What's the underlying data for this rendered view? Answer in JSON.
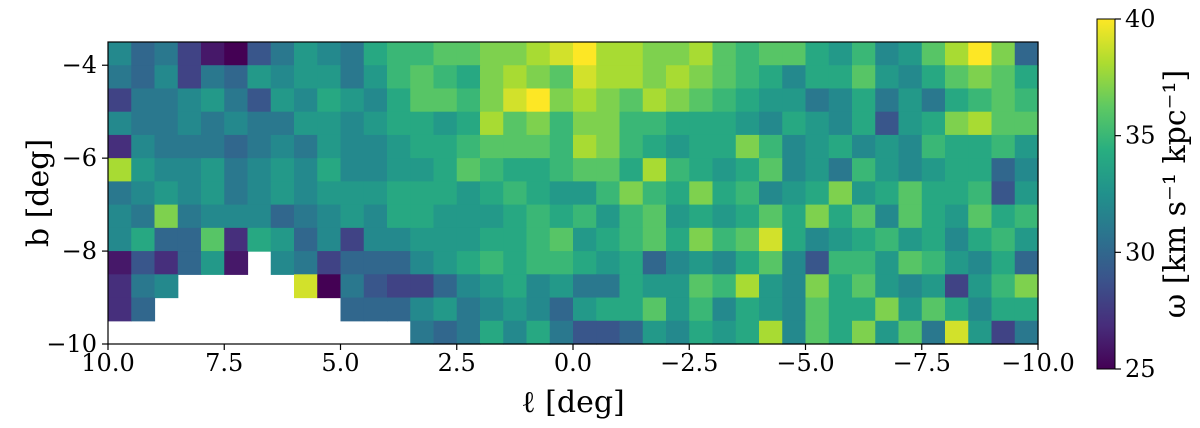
{
  "chart_data": {
    "type": "heatmap",
    "title": "",
    "xlabel": "ℓ [deg]",
    "ylabel": "b [deg]",
    "colorbar_label": "ω [km s⁻¹ kpc⁻¹]",
    "xlim": [
      10.0,
      -10.0
    ],
    "ylim": [
      -10,
      -3.5
    ],
    "x_ticks": [
      10.0,
      7.5,
      5.0,
      2.5,
      0.0,
      -2.5,
      -5.0,
      -7.5,
      -10.0
    ],
    "x_tick_labels": [
      "10.0",
      "7.5",
      "5.0",
      "2.5",
      "0.0",
      "−2.5",
      "−5.0",
      "−7.5",
      "−10.0"
    ],
    "y_ticks": [
      -4,
      -6,
      -8,
      -10
    ],
    "y_tick_labels": [
      "−4",
      "−6",
      "−8",
      "−10"
    ],
    "colorbar_range": [
      25,
      40
    ],
    "colorbar_ticks": [
      25,
      30,
      35,
      40
    ],
    "colorbar_tick_labels": [
      "25",
      "30",
      "35",
      "40"
    ],
    "colormap": "viridis",
    "cell_size_deg": 0.5,
    "row_b_centers": [
      -3.75,
      -4.25,
      -4.75,
      -5.25,
      -5.75,
      -6.25,
      -6.75,
      -7.25,
      -7.75,
      -8.25,
      -8.75,
      -9.25,
      -9.75
    ],
    "col_l_centers": [
      9.75,
      9.25,
      8.75,
      8.25,
      7.75,
      7.25,
      6.75,
      6.25,
      5.75,
      5.25,
      4.75,
      4.25,
      3.75,
      3.25,
      2.75,
      2.25,
      1.75,
      1.25,
      0.75,
      0.25,
      -0.25,
      -0.75,
      -1.25,
      -1.75,
      -2.25,
      -2.75,
      -3.25,
      -3.75,
      -4.25,
      -4.75,
      -5.25,
      -5.75,
      -6.25,
      -6.75,
      -7.25,
      -7.75,
      -8.25,
      -8.75,
      -9.25,
      -9.75
    ],
    "values": [
      [
        32,
        30,
        31,
        28,
        26,
        25,
        29,
        31,
        33,
        32,
        31,
        34,
        35,
        35,
        36,
        36,
        37,
        37,
        38,
        39,
        40,
        38,
        38,
        37,
        37,
        38,
        36,
        35,
        36,
        36,
        34,
        33,
        35,
        32,
        33,
        36,
        38,
        40,
        37,
        30
      ],
      [
        31,
        30,
        32,
        28,
        31,
        30,
        33,
        32,
        33,
        33,
        31,
        33,
        35,
        36,
        35,
        34,
        37,
        38,
        37,
        36,
        39,
        38,
        38,
        37,
        38,
        37,
        36,
        35,
        34,
        32,
        34,
        34,
        36,
        33,
        32,
        34,
        36,
        37,
        36,
        34
      ],
      [
        28,
        31,
        31,
        32,
        33,
        31,
        29,
        33,
        32,
        34,
        33,
        32,
        34,
        36,
        36,
        35,
        37,
        39,
        40,
        37,
        38,
        37,
        36,
        38,
        37,
        36,
        35,
        34,
        33,
        33,
        31,
        32,
        34,
        31,
        33,
        31,
        34,
        35,
        36,
        35
      ],
      [
        32,
        31,
        31,
        32,
        31,
        32,
        31,
        31,
        33,
        33,
        32,
        33,
        34,
        34,
        33,
        34,
        38,
        36,
        37,
        35,
        37,
        37,
        35,
        35,
        34,
        34,
        34,
        33,
        32,
        34,
        33,
        32,
        34,
        29,
        33,
        34,
        37,
        38,
        36,
        36
      ],
      [
        27,
        32,
        31,
        31,
        31,
        30,
        31,
        32,
        31,
        33,
        32,
        32,
        33,
        34,
        34,
        35,
        36,
        36,
        36,
        35,
        38,
        37,
        35,
        34,
        33,
        34,
        34,
        37,
        35,
        32,
        33,
        34,
        32,
        33,
        32,
        35,
        34,
        34,
        35,
        33
      ],
      [
        38,
        33,
        32,
        32,
        33,
        31,
        32,
        33,
        32,
        34,
        32,
        32,
        33,
        33,
        34,
        36,
        35,
        34,
        34,
        35,
        36,
        36,
        34,
        38,
        35,
        34,
        33,
        34,
        36,
        32,
        33,
        31,
        35,
        33,
        32,
        33,
        34,
        34,
        30,
        32
      ],
      [
        31,
        32,
        33,
        32,
        33,
        31,
        32,
        33,
        32,
        33,
        33,
        33,
        34,
        34,
        34,
        33,
        34,
        35,
        34,
        33,
        33,
        35,
        37,
        35,
        34,
        37,
        34,
        35,
        32,
        33,
        34,
        37,
        33,
        34,
        36,
        34,
        34,
        35,
        29,
        33
      ],
      [
        32,
        31,
        37,
        31,
        32,
        32,
        32,
        30,
        31,
        32,
        33,
        32,
        34,
        34,
        33,
        33,
        33,
        34,
        35,
        34,
        35,
        33,
        35,
        36,
        33,
        34,
        33,
        34,
        36,
        34,
        37,
        34,
        36,
        32,
        36,
        34,
        33,
        36,
        34,
        35
      ],
      [
        32,
        34,
        30,
        30,
        36,
        27,
        34,
        33,
        30,
        32,
        28,
        32,
        32,
        33,
        33,
        33,
        34,
        34,
        35,
        36,
        33,
        34,
        35,
        36,
        34,
        37,
        35,
        36,
        39,
        34,
        32,
        33,
        34,
        35,
        33,
        34,
        32,
        34,
        35,
        33
      ],
      [
        26,
        29,
        27,
        30,
        33,
        26,
        null,
        32,
        31,
        28,
        30,
        30,
        30,
        32,
        33,
        34,
        35,
        34,
        35,
        35,
        34,
        33,
        34,
        30,
        32,
        33,
        32,
        34,
        36,
        32,
        29,
        35,
        35,
        33,
        36,
        35,
        33,
        32,
        34,
        30
      ],
      [
        27,
        31,
        32,
        null,
        null,
        null,
        null,
        null,
        39,
        25,
        31,
        29,
        28,
        28,
        30,
        32,
        33,
        34,
        32,
        33,
        31,
        31,
        34,
        33,
        33,
        36,
        35,
        38,
        33,
        32,
        37,
        34,
        36,
        33,
        32,
        33,
        28,
        33,
        35,
        37
      ],
      [
        27,
        30,
        null,
        null,
        null,
        null,
        null,
        null,
        null,
        null,
        30,
        30,
        30,
        32,
        33,
        31,
        32,
        33,
        32,
        30,
        33,
        34,
        34,
        36,
        33,
        35,
        32,
        34,
        33,
        32,
        36,
        34,
        34,
        37,
        33,
        36,
        34,
        32,
        34,
        34
      ],
      [
        null,
        null,
        null,
        null,
        null,
        null,
        null,
        null,
        null,
        null,
        null,
        null,
        null,
        31,
        30,
        31,
        34,
        32,
        34,
        31,
        29,
        29,
        30,
        33,
        32,
        34,
        33,
        34,
        38,
        32,
        36,
        34,
        37,
        33,
        36,
        31,
        39,
        33,
        28,
        31
      ]
    ]
  }
}
